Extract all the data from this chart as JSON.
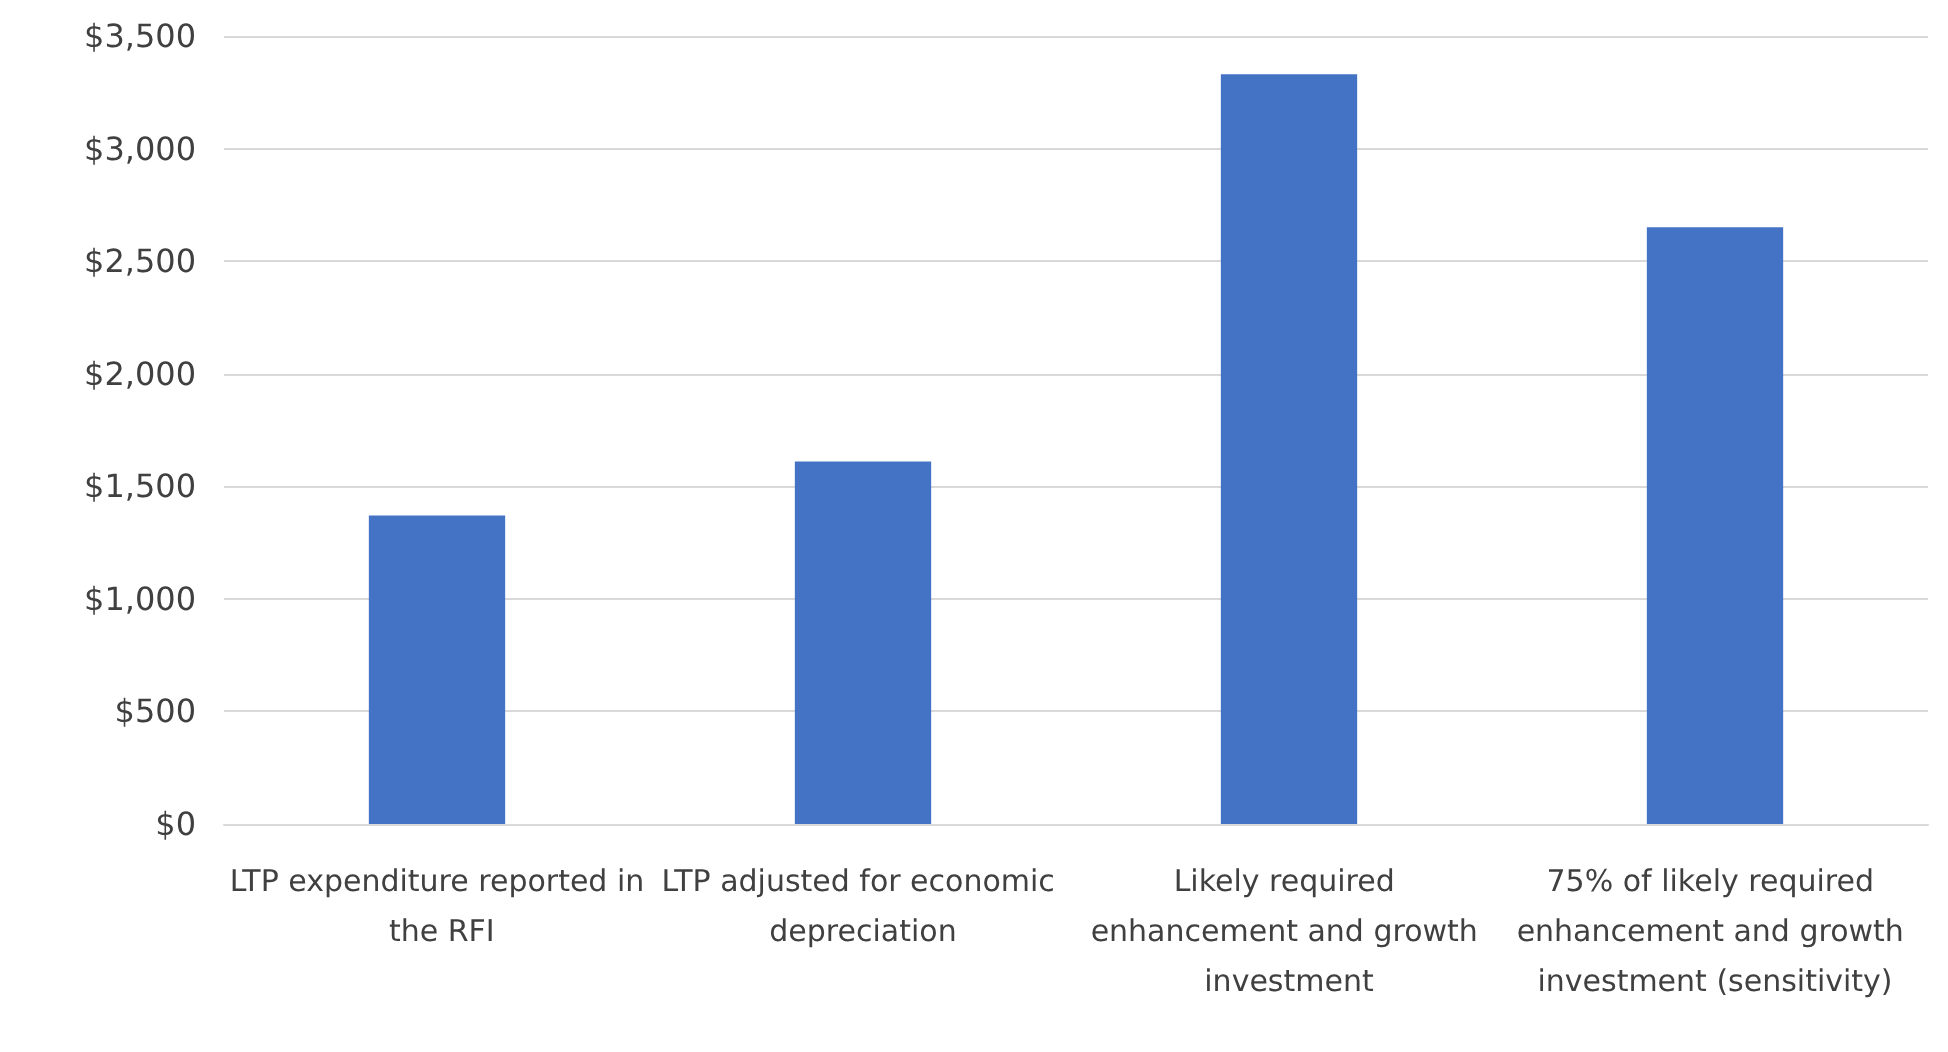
{
  "chart_data": {
    "type": "bar",
    "categories": [
      "LTP expenditure reported in the RFI",
      "LTP adjusted for economic depreciation",
      "Likely required enhancement and growth investment",
      "75% of likely required enhancement and growth investment (sensitivity)"
    ],
    "values": [
      1370,
      1610,
      3330,
      2650
    ],
    "color": "#4472c4",
    "ylim": [
      0,
      3500
    ],
    "yticks": [
      {
        "value": 0,
        "label": "$0"
      },
      {
        "value": 500,
        "label": "$500"
      },
      {
        "value": 1000,
        "label": "$1,000"
      },
      {
        "value": 1500,
        "label": "$1,500"
      },
      {
        "value": 2000,
        "label": "$2,000"
      },
      {
        "value": 2500,
        "label": "$2,500"
      },
      {
        "value": 3000,
        "label": "$3,000"
      },
      {
        "value": 3500,
        "label": "$3,500"
      }
    ],
    "grid": true
  }
}
